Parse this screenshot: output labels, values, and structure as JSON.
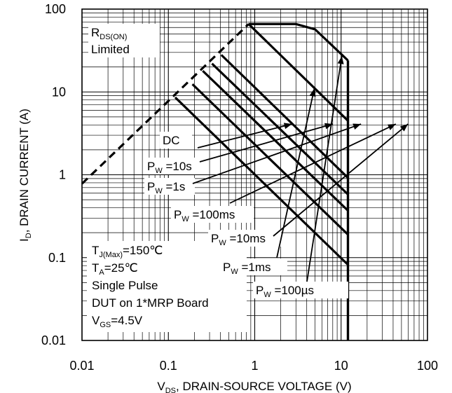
{
  "chart_data": {
    "type": "line",
    "scale": {
      "x": "log",
      "y": "log"
    },
    "xlim": [
      0.01,
      100
    ],
    "ylim": [
      0.01,
      100
    ],
    "grid": true,
    "x_ticks": [
      "0.01",
      "0.1",
      "1",
      "10",
      "100"
    ],
    "y_ticks": [
      "100",
      "10",
      "1",
      "0.1",
      "0.01"
    ],
    "xlabel": {
      "main": "V",
      "sub": "DS",
      "rest": ", DRAIN-SOURCE VOLTAGE (V)"
    },
    "ylabel": {
      "main": "I",
      "sub": "D",
      "rest": ", DRAIN CURRENT (A)"
    },
    "rds_label": {
      "main": "R",
      "sub": "DS(ON)",
      "line2": "Limited"
    },
    "conditions": [
      {
        "main": "T",
        "sub": "J(Max)",
        "rest": "=150℃"
      },
      {
        "main": "T",
        "sub": "A",
        "rest": "=25℃"
      },
      {
        "main": "Single Pulse",
        "sub": "",
        "rest": ""
      },
      {
        "main": "DUT on 1*MRP Board",
        "sub": "",
        "rest": ""
      },
      {
        "main": "V",
        "sub": "GS",
        "rest": "=4.5V"
      }
    ],
    "rds_limit_line": {
      "x": [
        0.01,
        0.85
      ],
      "y": [
        0.78,
        66
      ]
    },
    "breakdown_voltage": 12,
    "series": [
      {
        "name": "DC",
        "label": {
          "text": "DC",
          "main": "",
          "sub": "",
          "rest": ""
        },
        "x": [
          0.12,
          12
        ],
        "y": [
          8.6,
          0.082
        ]
      },
      {
        "name": "P_W=10s",
        "label": {
          "text": "",
          "main": "P",
          "sub": "W",
          "rest": " =10s"
        },
        "x": [
          0.19,
          12
        ],
        "y": [
          12.4,
          0.19
        ]
      },
      {
        "name": "P_W=1s",
        "label": {
          "text": "",
          "main": "P",
          "sub": "W",
          "rest": " =1s"
        },
        "x": [
          0.25,
          12
        ],
        "y": [
          18,
          0.37
        ]
      },
      {
        "name": "P_W=100ms",
        "label": {
          "text": "",
          "main": "P",
          "sub": "W",
          "rest": " =100ms"
        },
        "x": [
          0.32,
          12
        ],
        "y": [
          22,
          0.58
        ]
      },
      {
        "name": "P_W=10ms",
        "label": {
          "text": "",
          "main": "P",
          "sub": "W",
          "rest": " =10ms"
        },
        "x": [
          0.41,
          12
        ],
        "y": [
          28,
          0.92
        ]
      },
      {
        "name": "P_W=1ms",
        "label": {
          "text": "",
          "main": "P",
          "sub": "W",
          "rest": " =1ms"
        },
        "x": [
          0.85,
          12
        ],
        "y": [
          66,
          4.5
        ]
      },
      {
        "name": "P_W=100µs",
        "label": {
          "text": "",
          "main": "P",
          "sub": "W",
          "rest": " =100µs"
        },
        "x": [
          0.85,
          3,
          5,
          12
        ],
        "y": [
          66,
          66,
          57,
          24
        ]
      }
    ]
  }
}
